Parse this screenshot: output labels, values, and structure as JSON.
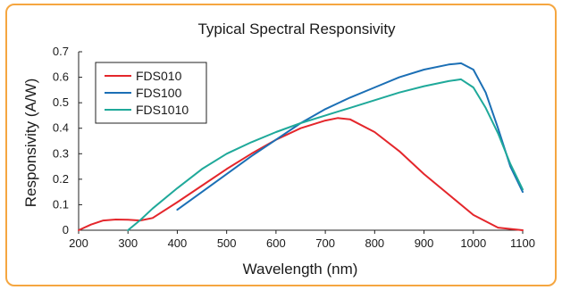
{
  "chart_data": {
    "type": "line",
    "title": "Typical Spectral Responsivity",
    "xlabel": "Wavelength (nm)",
    "ylabel": "Responsivity (A/W)",
    "xlim": [
      200,
      1100
    ],
    "ylim": [
      0,
      0.7
    ],
    "xticks": [
      "200",
      "300",
      "400",
      "500",
      "600",
      "700",
      "800",
      "900",
      "1000",
      "1100"
    ],
    "yticks": [
      "0",
      "0.1",
      "0.2",
      "0.3",
      "0.4",
      "0.5",
      "0.6",
      "0.7"
    ],
    "grid": false,
    "legend_position": "top-left",
    "series": [
      {
        "name": "FDS010",
        "color": "#e4262b",
        "x": [
          200,
          225,
          250,
          275,
          300,
          325,
          350,
          400,
          450,
          500,
          550,
          600,
          650,
          700,
          725,
          750,
          800,
          850,
          900,
          950,
          1000,
          1050,
          1100
        ],
        "y": [
          0.0,
          0.022,
          0.038,
          0.042,
          0.041,
          0.038,
          0.048,
          0.11,
          0.175,
          0.24,
          0.3,
          0.355,
          0.4,
          0.43,
          0.44,
          0.435,
          0.385,
          0.31,
          0.22,
          0.14,
          0.06,
          0.01,
          0.0
        ]
      },
      {
        "name": "FDS100",
        "color": "#1b6fb5",
        "x": [
          400,
          450,
          500,
          550,
          600,
          650,
          700,
          750,
          800,
          850,
          900,
          950,
          975,
          1000,
          1025,
          1050,
          1075,
          1100
        ],
        "y": [
          0.08,
          0.15,
          0.22,
          0.29,
          0.355,
          0.42,
          0.475,
          0.52,
          0.56,
          0.6,
          0.63,
          0.65,
          0.655,
          0.63,
          0.54,
          0.4,
          0.25,
          0.15
        ]
      },
      {
        "name": "FDS1010",
        "color": "#1fa99a",
        "x": [
          300,
          325,
          350,
          400,
          450,
          500,
          550,
          600,
          650,
          700,
          750,
          800,
          850,
          900,
          950,
          975,
          1000,
          1025,
          1050,
          1075,
          1100
        ],
        "y": [
          0.0,
          0.04,
          0.085,
          0.165,
          0.24,
          0.3,
          0.345,
          0.385,
          0.42,
          0.45,
          0.48,
          0.51,
          0.54,
          0.565,
          0.585,
          0.592,
          0.56,
          0.48,
          0.38,
          0.26,
          0.16
        ]
      }
    ]
  }
}
